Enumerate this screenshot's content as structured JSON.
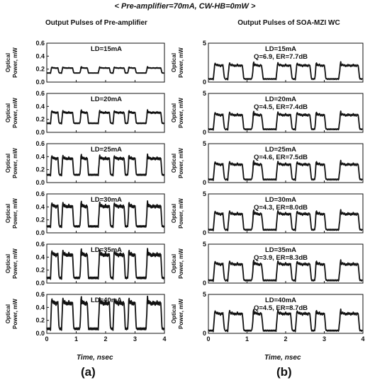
{
  "figure": {
    "title": "< Pre-amplifier=70mA, CW-HB=0mW >",
    "columns": [
      {
        "title": "Output Pulses of Pre-amplifier",
        "tag": "(a)",
        "xlabel": "Time, nsec"
      },
      {
        "title": "Output Pulses of SOA-MZI WC",
        "tag": "(b)",
        "xlabel": "Time, nsec"
      }
    ],
    "ylabel_line1": "Optical",
    "ylabel_line2": "Power, mW"
  },
  "chart_data": [
    {
      "type": "line",
      "column": "a",
      "title": "Output Pulses of Pre-amplifier",
      "xlabel": "Time, nsec",
      "ylabel": "Optical Power, mW",
      "xlim": [
        0,
        4
      ],
      "xticks": [
        "0",
        "1",
        "2",
        "3",
        "4"
      ],
      "ylim": [
        0.0,
        0.6
      ],
      "yticks": [
        "0.0",
        "0.2",
        "0.4",
        "0.6"
      ],
      "bit_pattern": "01101110011000111011101100011110",
      "panels": [
        {
          "label": "LD=15mA",
          "low": 0.14,
          "high": 0.22
        },
        {
          "label": "LD=20mA",
          "low": 0.14,
          "high": 0.31
        },
        {
          "label": "LD=25mA",
          "low": 0.12,
          "high": 0.38
        },
        {
          "label": "LD=30mA",
          "low": 0.1,
          "high": 0.42
        },
        {
          "label": "LD=35mA",
          "low": 0.08,
          "high": 0.45
        },
        {
          "label": "LD=40mA",
          "low": 0.07,
          "high": 0.48
        }
      ]
    },
    {
      "type": "line",
      "column": "b",
      "title": "Output Pulses of SOA-MZI WC",
      "xlabel": "Time, nsec",
      "ylabel": "Optical Power, mW",
      "xlim": [
        0,
        4
      ],
      "xticks": [
        "0",
        "1",
        "2",
        "3",
        "4"
      ],
      "ylim": [
        0,
        5
      ],
      "yticks": [
        "0",
        "5"
      ],
      "bit_pattern": "01101110011000111011101100011110",
      "panels": [
        {
          "label": "LD=15mA",
          "label2": "Q=6.9, ER=7.7dB",
          "low": 0.4,
          "high": 2.2
        },
        {
          "label": "LD=20mA",
          "label2": "Q=4.5, ER=7.4dB",
          "low": 0.4,
          "high": 2.3
        },
        {
          "label": "LD=25mA",
          "label2": "Q=4.6, ER=7.5dB",
          "low": 0.4,
          "high": 2.4
        },
        {
          "label": "LD=30mA",
          "label2": "Q=4.3, ER=8.0dB",
          "low": 0.4,
          "high": 2.5
        },
        {
          "label": "LD=35mA",
          "label2": "Q=3.9, ER=8.3dB",
          "low": 0.35,
          "high": 2.5
        },
        {
          "label": "LD=40mA",
          "label2": "Q=4.5, ER=8.7dB",
          "low": 0.35,
          "high": 2.6
        }
      ]
    }
  ]
}
